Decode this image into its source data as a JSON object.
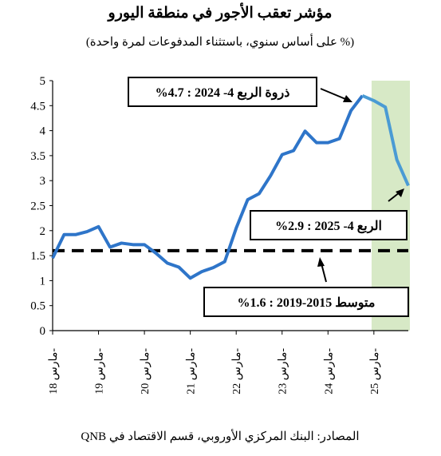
{
  "chart_data": {
    "type": "line",
    "title": "مؤشر تعقب الأجور في منطقة اليورو",
    "subtitle": "(% على أساس سنوي، باستثناء المدفوعات لمرة واحدة)",
    "source": "المصادر: البنك المركزي الأوروبي، قسم الاقتصاد في QNB",
    "ylim": [
      0,
      5
    ],
    "yticks": [
      "0",
      "0.5",
      "1",
      "1.5",
      "2",
      "2.5",
      "3",
      "3.5",
      "4",
      "4.5",
      "5"
    ],
    "xtick_labels": [
      "مارس 18-",
      "مارس 19-",
      "مارس 20-",
      "مارس 21-",
      "مارس 22-",
      "مارس 23-",
      "مارس 24-",
      "مارس 25-"
    ],
    "x_quarters": [
      "Q1-2018",
      "Q2-2018",
      "Q3-2018",
      "Q4-2018",
      "Q1-2019",
      "Q2-2019",
      "Q3-2019",
      "Q4-2019",
      "Q1-2020",
      "Q2-2020",
      "Q3-2020",
      "Q4-2020",
      "Q1-2021",
      "Q2-2021",
      "Q3-2021",
      "Q4-2021",
      "Q1-2022",
      "Q2-2022",
      "Q3-2022",
      "Q4-2022",
      "Q1-2023",
      "Q2-2023",
      "Q3-2023",
      "Q4-2023",
      "Q1-2024",
      "Q2-2024",
      "Q3-2024",
      "Q4-2024",
      "Q1-2025",
      "Q2-2025",
      "Q3-2025",
      "Q4-2025"
    ],
    "series": [
      {
        "color": "#2e75c9",
        "values": [
          1.45,
          1.92,
          1.92,
          1.98,
          2.08,
          1.67,
          1.75,
          1.72,
          1.72,
          1.55,
          1.35,
          1.27,
          1.05,
          1.18,
          1.26,
          1.38,
          2.05,
          2.62,
          2.74,
          3.1,
          3.52,
          3.6,
          3.99,
          3.76,
          3.76,
          3.84,
          4.4,
          4.7,
          4.6,
          4.47,
          3.42,
          2.9
        ],
        "forecast_from_index": 28,
        "forecast_color": "#4a9bd4"
      }
    ],
    "average": {
      "value": 1.6,
      "style": "dashed",
      "color": "#000000"
    },
    "shaded_region": {
      "from_quarter": "Q1-2025",
      "to_quarter": "Q4-2025",
      "color": "#d7e9c6"
    },
    "annotations": [
      {
        "text": "ذروة الربع 4- 2024 : 4.7%",
        "target_quarter": "Q4-2024",
        "target_value": 4.7
      },
      {
        "text": "الربع 4- 2025 : 2.9%",
        "target_quarter": "Q4-2025",
        "target_value": 2.9
      },
      {
        "text": "متوسط 2015-2019 : 1.6%",
        "target_quarter": "Q1-2024",
        "target_value": 1.6
      }
    ]
  }
}
